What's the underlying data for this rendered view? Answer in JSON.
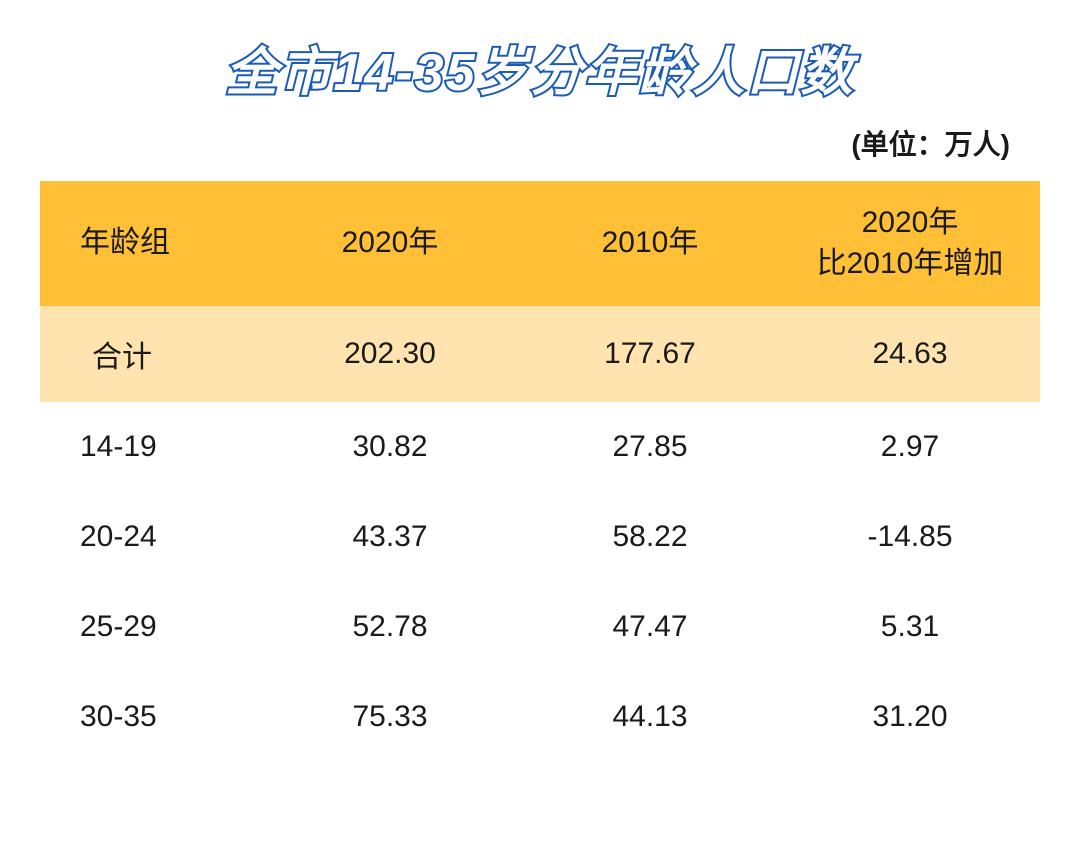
{
  "title": "全市14-35岁分年龄人口数",
  "unit": "(单位：万人)",
  "table": {
    "columns": [
      "年龄组",
      "2020年",
      "2010年",
      "2020年\n比2010年增加"
    ],
    "column_widths": [
      "22%",
      "26%",
      "26%",
      "26%"
    ],
    "header_bg_color": "#ffc038",
    "total_row_bg_color": "#ffe4b0",
    "total_row": {
      "label": "合计",
      "year2020": "202.30",
      "year2010": "177.67",
      "diff": "24.63"
    },
    "rows": [
      {
        "age_group": "14-19",
        "year2020": "30.82",
        "year2010": "27.85",
        "diff": "2.97"
      },
      {
        "age_group": "20-24",
        "year2020": "43.37",
        "year2010": "58.22",
        "diff": "-14.85"
      },
      {
        "age_group": "25-29",
        "year2020": "52.78",
        "year2010": "47.47",
        "diff": "5.31"
      },
      {
        "age_group": "30-35",
        "year2020": "75.33",
        "year2010": "44.13",
        "diff": "31.20"
      }
    ]
  },
  "styling": {
    "title_color_fill": "#ffffff",
    "title_color_stroke": "#1a5bb8",
    "title_fontsize": 52,
    "unit_fontsize": 28,
    "cell_fontsize": 30,
    "text_color": "#1a1a1a",
    "background_color": "#ffffff"
  }
}
